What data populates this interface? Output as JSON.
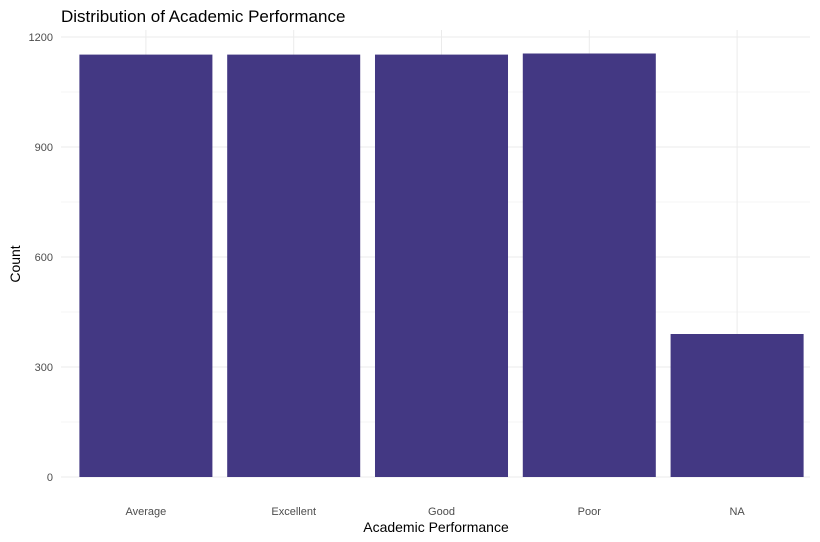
{
  "chart_data": {
    "type": "bar",
    "title": "Distribution of Academic Performance",
    "xlabel": "Academic Performance",
    "ylabel": "Count",
    "categories": [
      "Average",
      "Excellent",
      "Good",
      "Poor",
      "NA"
    ],
    "values": [
      1152,
      1152,
      1152,
      1155,
      390
    ],
    "ylim": [
      0,
      1200
    ],
    "yticks": [
      "0",
      "300",
      "600",
      "900",
      "1200"
    ],
    "grid": true,
    "bar_color": "#433883"
  }
}
